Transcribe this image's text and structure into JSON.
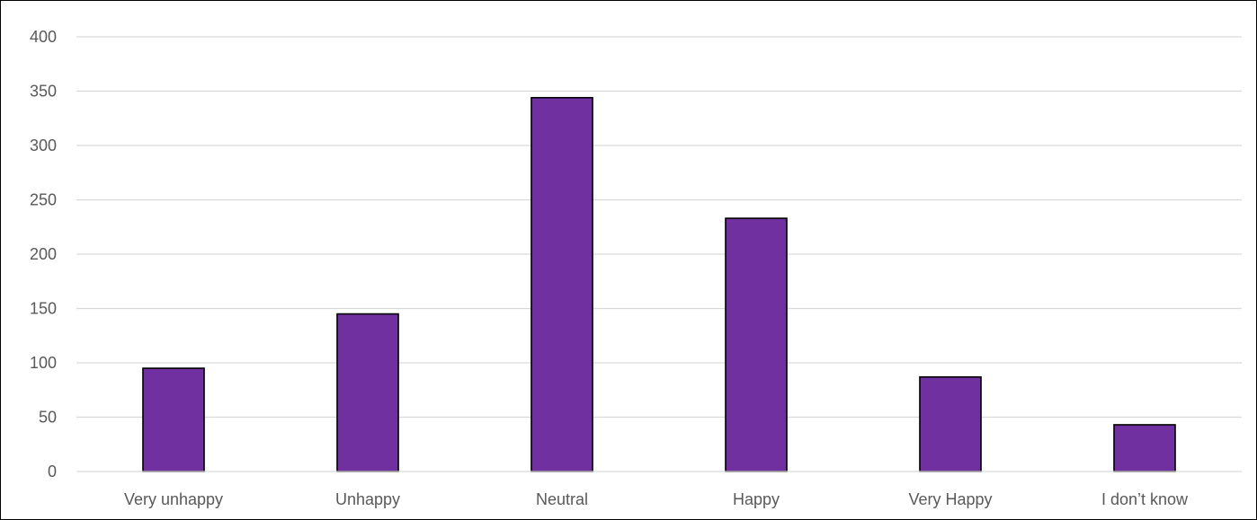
{
  "chart_data": {
    "type": "bar",
    "categories": [
      "Very unhappy",
      "Unhappy",
      "Neutral",
      "Happy",
      "Very Happy",
      "I don’t know"
    ],
    "values": [
      95,
      145,
      344,
      233,
      87,
      43
    ],
    "title": "",
    "xlabel": "",
    "ylabel": "",
    "ylim": [
      0,
      400
    ],
    "yticks": [
      0,
      50,
      100,
      150,
      200,
      250,
      300,
      350,
      400
    ],
    "ytick_labels": [
      "0",
      "50",
      "100",
      "150",
      "200",
      "250",
      "300",
      "350",
      "400"
    ],
    "grid": true,
    "legend": "none",
    "bar_color": "#7030A0",
    "bar_outline": "#000000",
    "grid_color": "#D9D9D9"
  }
}
